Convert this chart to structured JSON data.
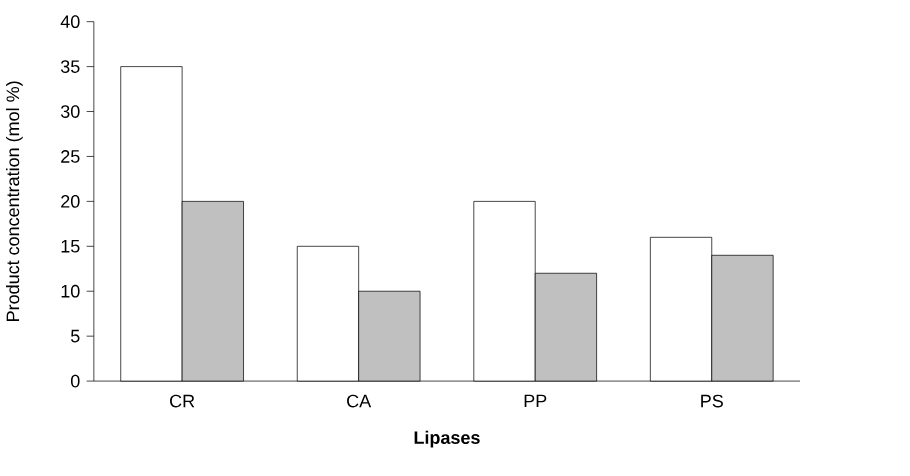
{
  "chart_data": {
    "type": "bar",
    "xlabel": "Lipases",
    "ylabel": "Product concentration (mol %)",
    "categories": [
      "CR",
      "CA",
      "PP",
      "PS"
    ],
    "series": [
      {
        "color": "#ffffff",
        "values": [
          35,
          15,
          20,
          16
        ]
      },
      {
        "color": "#c0c0c0",
        "values": [
          20,
          10,
          12,
          14
        ]
      }
    ],
    "ylim": [
      0,
      40
    ],
    "yticks": [
      0,
      5,
      10,
      15,
      20,
      25,
      30,
      35,
      40
    ],
    "grid": false
  }
}
